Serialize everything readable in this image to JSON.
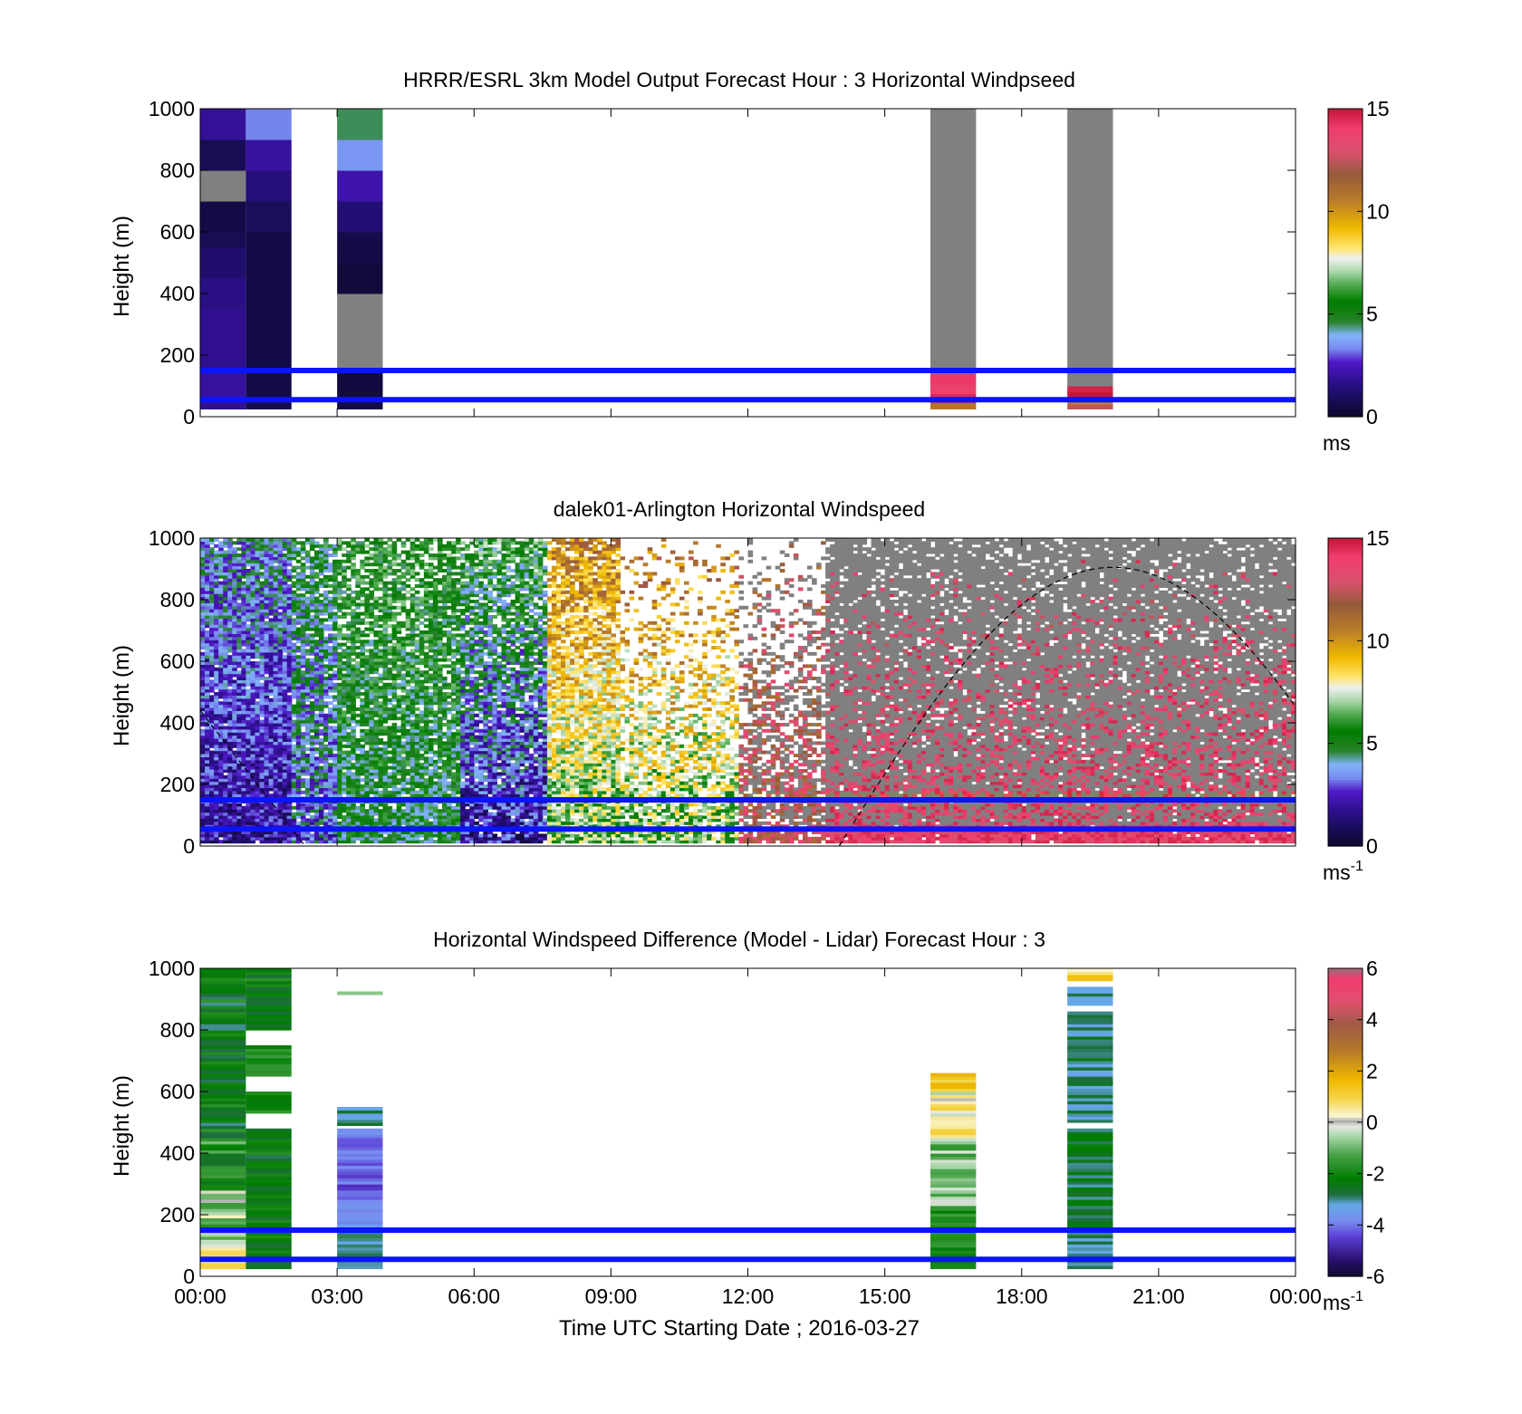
{
  "chart_data": [
    {
      "type": "heatmap",
      "title": "HRRR/ESRL 3km Model Output   Forecast Hour : 3 Horizontal Windpseed",
      "ylabel": "Height (m)",
      "ylim": [
        0,
        1000
      ],
      "yticks": [
        "0",
        "200",
        "400",
        "600",
        "800",
        "1000"
      ],
      "xlim_hours": [
        0,
        24
      ],
      "colorbar": {
        "range": [
          0,
          15
        ],
        "ticks": [
          "0",
          "5",
          "10",
          "15"
        ],
        "unit": "ms",
        "unit_sup": ""
      },
      "reference_lines_m": [
        150,
        55
      ],
      "columns": [
        {
          "t0": 0,
          "t1": 1,
          "cells": [
            [
              25,
              50,
              1.8
            ],
            [
              50,
              150,
              2.0
            ],
            [
              150,
              350,
              1.8
            ],
            [
              350,
              450,
              1.6
            ],
            [
              450,
              550,
              1.2
            ],
            [
              550,
              600,
              0.8
            ],
            [
              600,
              700,
              0.5
            ],
            [
              700,
              800,
              -1
            ],
            [
              800,
              900,
              0.8
            ],
            [
              900,
              1000,
              1.9
            ]
          ]
        },
        {
          "t0": 1,
          "t1": 2,
          "cells": [
            [
              25,
              60,
              0.7
            ],
            [
              60,
              150,
              0.6
            ],
            [
              150,
              600,
              0.5
            ],
            [
              600,
              700,
              0.9
            ],
            [
              700,
              800,
              1.4
            ],
            [
              800,
              900,
              2.0
            ],
            [
              900,
              1000,
              3.3
            ]
          ]
        },
        {
          "t0": 3,
          "t1": 4,
          "cells": [
            [
              25,
              60,
              0.5
            ],
            [
              60,
              150,
              0.4
            ],
            [
              150,
              400,
              -1
            ],
            [
              400,
              500,
              0.3
            ],
            [
              500,
              600,
              0.6
            ],
            [
              600,
              700,
              1.3
            ],
            [
              700,
              800,
              2.2
            ],
            [
              800,
              900,
              3.5
            ],
            [
              900,
              1000,
              4.5
            ]
          ]
        },
        {
          "t0": 16,
          "t1": 17,
          "cells": [
            [
              25,
              45,
              10.8
            ],
            [
              45,
              75,
              14.5
            ],
            [
              75,
              105,
              13.8
            ],
            [
              105,
              140,
              14.2
            ],
            [
              140,
              1000,
              -1
            ]
          ]
        },
        {
          "t0": 19,
          "t1": 20,
          "cells": [
            [
              25,
              40,
              12.5
            ],
            [
              40,
              55,
              10.5
            ],
            [
              55,
              80,
              15.0
            ],
            [
              80,
              100,
              14.7
            ],
            [
              100,
              1000,
              -1
            ]
          ]
        }
      ]
    },
    {
      "type": "heatmap",
      "title": "dalek01-Arlington  Horizontal Windspeed",
      "ylabel": "Height (m)",
      "ylim": [
        0,
        1000
      ],
      "yticks": [
        "0",
        "200",
        "400",
        "600",
        "800",
        "1000"
      ],
      "xlim_hours": [
        0,
        24
      ],
      "colorbar": {
        "range": [
          0,
          15
        ],
        "ticks": [
          "0",
          "5",
          "10",
          "15"
        ],
        "unit": "ms",
        "unit_sup": "-1"
      },
      "reference_lines_m": [
        150,
        55
      ],
      "curve": {
        "style": "dashed",
        "peak_hour": 20,
        "peak_height_m": 905,
        "zero_hours": [
          2.3,
          14.0
        ]
      },
      "segments": [
        {
          "t0": 0.0,
          "t1": 2.0,
          "bottom": 1.8,
          "top": 4.0,
          "gap": 0.03,
          "noise": 1.4
        },
        {
          "t0": 2.0,
          "t1": 3.0,
          "bottom": 3.2,
          "top": 5.0,
          "gap": 0.12,
          "noise": 1.6
        },
        {
          "t0": 3.0,
          "t1": 5.7,
          "bottom": 4.8,
          "top": 5.8,
          "gap": 0.18,
          "noise": 1.4
        },
        {
          "t0": 5.7,
          "t1": 7.6,
          "bottom": 2.0,
          "top": 5.8,
          "gap": 0.12,
          "noise": 1.8
        },
        {
          "t0": 7.6,
          "t1": 9.2,
          "bottom": 6.5,
          "top": 10.5,
          "gap": 0.15,
          "noise": 1.8
        },
        {
          "t0": 9.2,
          "t1": 11.8,
          "bottom": 6.5,
          "top": 10.8,
          "gap": 0.55,
          "noise": 2.0
        },
        {
          "t0": 11.8,
          "t1": 13.7,
          "bottom": 12.6,
          "top": 12.0,
          "gap": 0.55,
          "grey": 0.6,
          "noise": 1.5
        },
        {
          "t0": 13.7,
          "t1": 24.0,
          "bottom": 14.0,
          "top": 13.5,
          "gap": 0.1,
          "grey": 0.9,
          "noise": 1.2
        }
      ]
    },
    {
      "type": "heatmap",
      "title": "Horizontal Windspeed Difference (Model - Lidar) Forecast Hour : 3",
      "ylabel": "Height (m)",
      "xlabel": "Time UTC  Starting Date ; 2016-03-27",
      "ylim": [
        0,
        1000
      ],
      "yticks": [
        "0",
        "200",
        "400",
        "600",
        "800",
        "1000"
      ],
      "xlim_hours": [
        0,
        24
      ],
      "xticks": [
        "00:00",
        "03:00",
        "06:00",
        "09:00",
        "12:00",
        "15:00",
        "18:00",
        "21:00",
        "00:00"
      ],
      "colorbar": {
        "range": [
          -6,
          6
        ],
        "ticks": [
          "-6",
          "-4",
          "-2",
          "0",
          "2",
          "4",
          "6"
        ],
        "unit": "ms",
        "unit_sup": "-1"
      },
      "reference_lines_m": [
        150,
        55
      ],
      "columns": [
        {
          "t0": 0,
          "t1": 1,
          "bands": [
            [
              25,
              120,
              0.3,
              0.8
            ],
            [
              120,
              280,
              -0.8,
              1.2
            ],
            [
              280,
              450,
              -1.8,
              1.0
            ],
            [
              450,
              1000,
              -2.3,
              0.8
            ]
          ]
        },
        {
          "t0": 1,
          "t1": 2,
          "bands": [
            [
              25,
              480,
              -2.3,
              0.6
            ],
            [
              530,
              600,
              -2.0,
              0.5
            ],
            [
              650,
              750,
              -1.7,
              0.5
            ],
            [
              800,
              1000,
              -2.2,
              0.6
            ]
          ]
        },
        {
          "t0": 3,
          "t1": 4,
          "bands": [
            [
              25,
              150,
              -3.0,
              0.3
            ],
            [
              150,
              250,
              -3.6,
              0.4
            ],
            [
              250,
              480,
              -4.2,
              0.5
            ],
            [
              490,
              550,
              -3.0,
              0.5
            ],
            [
              915,
              925,
              -0.7,
              0.1
            ]
          ]
        },
        {
          "t0": 16,
          "t1": 17,
          "bands": [
            [
              25,
              220,
              -1.8,
              0.5
            ],
            [
              220,
              450,
              -0.8,
              0.8
            ],
            [
              450,
              600,
              0.2,
              1.1
            ],
            [
              600,
              660,
              1.2,
              0.6
            ]
          ]
        },
        {
          "t0": 19,
          "t1": 20,
          "bands": [
            [
              25,
              150,
              -3.0,
              0.3
            ],
            [
              150,
              480,
              -2.6,
              0.5
            ],
            [
              500,
              860,
              -2.9,
              0.5
            ],
            [
              880,
              940,
              -3.0,
              0.3
            ],
            [
              960,
              1000,
              1.0,
              1.0
            ]
          ]
        }
      ]
    }
  ]
}
